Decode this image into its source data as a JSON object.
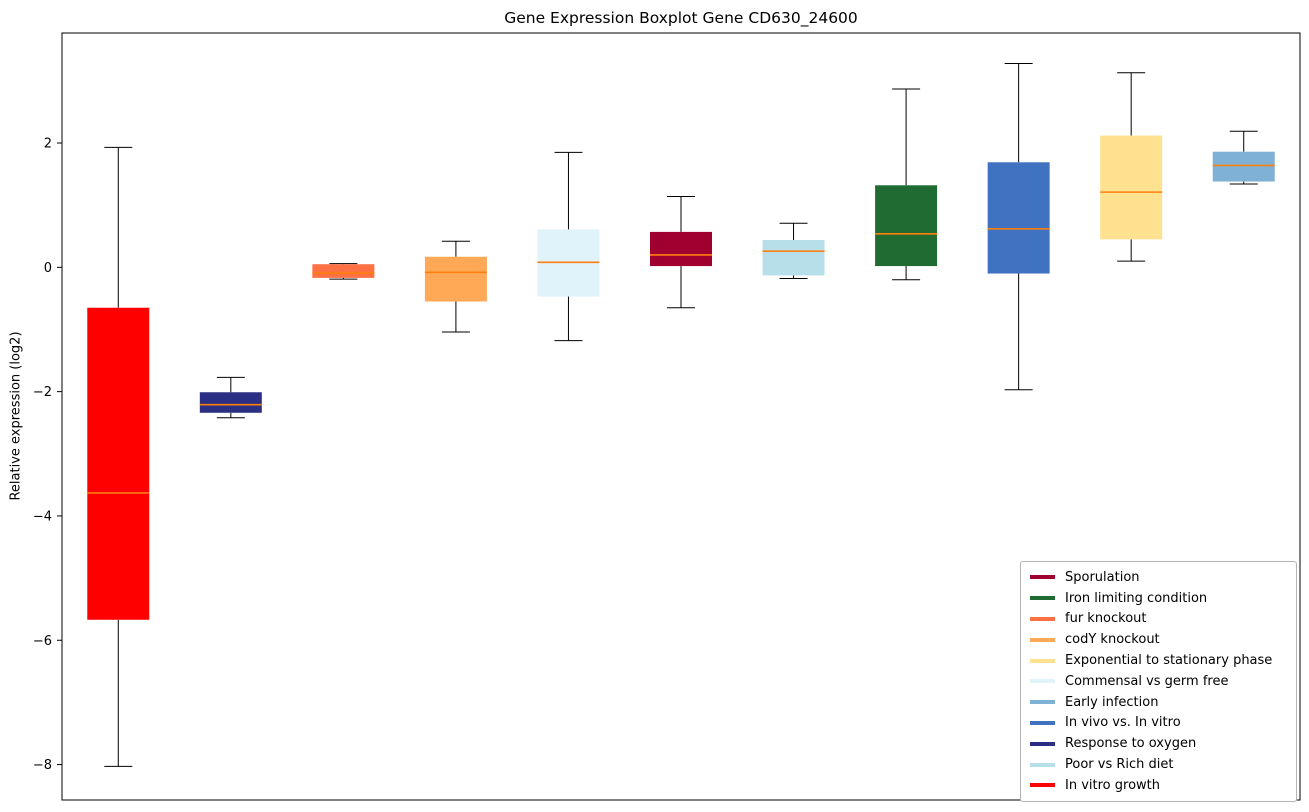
{
  "chart_data": {
    "type": "boxplot",
    "title": "Gene Expression Boxplot Gene CD630_24600",
    "ylabel": "Relative expression (log2)",
    "xlabel": "",
    "ylim": [
      -8.57,
      3.77
    ],
    "yticks": [
      2,
      0,
      -2,
      -4,
      -6,
      -8
    ],
    "grid": false,
    "median_color": "#ff7f0e",
    "whisker_color": "#000000",
    "boxes": [
      {
        "name": "In vitro growth",
        "color": "#FF0000",
        "whisker_low": -8.03,
        "q1": -5.67,
        "median": -3.63,
        "q3": -0.65,
        "whisker_high": 1.93
      },
      {
        "name": "Response to oxygen",
        "color": "#2B2F84",
        "whisker_low": -2.42,
        "q1": -2.34,
        "median": -2.21,
        "q3": -2.01,
        "whisker_high": -1.77
      },
      {
        "name": "fur knockout",
        "color": "#FF7043",
        "whisker_low": -0.19,
        "q1": -0.17,
        "median": -0.09,
        "q3": 0.05,
        "whisker_high": 0.06
      },
      {
        "name": "codY knockout",
        "color": "#FFA957",
        "whisker_low": -1.04,
        "q1": -0.55,
        "median": -0.08,
        "q3": 0.17,
        "whisker_high": 0.42
      },
      {
        "name": "Commensal vs germ free",
        "color": "#E0F3FB",
        "whisker_low": -1.18,
        "q1": -0.47,
        "median": 0.08,
        "q3": 0.61,
        "whisker_high": 1.85
      },
      {
        "name": "Sporulation",
        "color": "#A00030",
        "whisker_low": -0.65,
        "q1": 0.02,
        "median": 0.2,
        "q3": 0.57,
        "whisker_high": 1.14
      },
      {
        "name": "Poor vs Rich diet",
        "color": "#B6DFEA",
        "whisker_low": -0.18,
        "q1": -0.13,
        "median": 0.26,
        "q3": 0.44,
        "whisker_high": 0.71
      },
      {
        "name": "Iron limiting condition",
        "color": "#206B32",
        "whisker_low": -0.2,
        "q1": 0.02,
        "median": 0.54,
        "q3": 1.32,
        "whisker_high": 2.87
      },
      {
        "name": "In vivo vs. In vitro",
        "color": "#3F72C1",
        "whisker_low": -1.97,
        "q1": -0.1,
        "median": 0.62,
        "q3": 1.69,
        "whisker_high": 3.28
      },
      {
        "name": "Exponential to stationary phase",
        "color": "#FFE18F",
        "whisker_low": 0.1,
        "q1": 0.45,
        "median": 1.21,
        "q3": 2.12,
        "whisker_high": 3.13
      },
      {
        "name": "Early infection",
        "color": "#7EB1D5",
        "whisker_low": 1.34,
        "q1": 1.38,
        "median": 1.64,
        "q3": 1.86,
        "whisker_high": 2.19
      }
    ],
    "legend": {
      "position": "lower right",
      "entries": [
        {
          "label": "Sporulation",
          "color": "#A00030"
        },
        {
          "label": "Iron limiting condition",
          "color": "#206B32"
        },
        {
          "label": "fur knockout",
          "color": "#FF7043"
        },
        {
          "label": "codY knockout",
          "color": "#FFA957"
        },
        {
          "label": "Exponential to stationary phase",
          "color": "#FFE18F"
        },
        {
          "label": "Commensal vs germ free",
          "color": "#E0F3FB"
        },
        {
          "label": "Early infection",
          "color": "#7EB1D5"
        },
        {
          "label": "In vivo vs. In vitro",
          "color": "#3F72C1"
        },
        {
          "label": "Response to oxygen",
          "color": "#2B2F84"
        },
        {
          "label": "Poor vs Rich diet",
          "color": "#B6DFEA"
        },
        {
          "label": "In vitro growth",
          "color": "#FF0000"
        }
      ]
    }
  }
}
